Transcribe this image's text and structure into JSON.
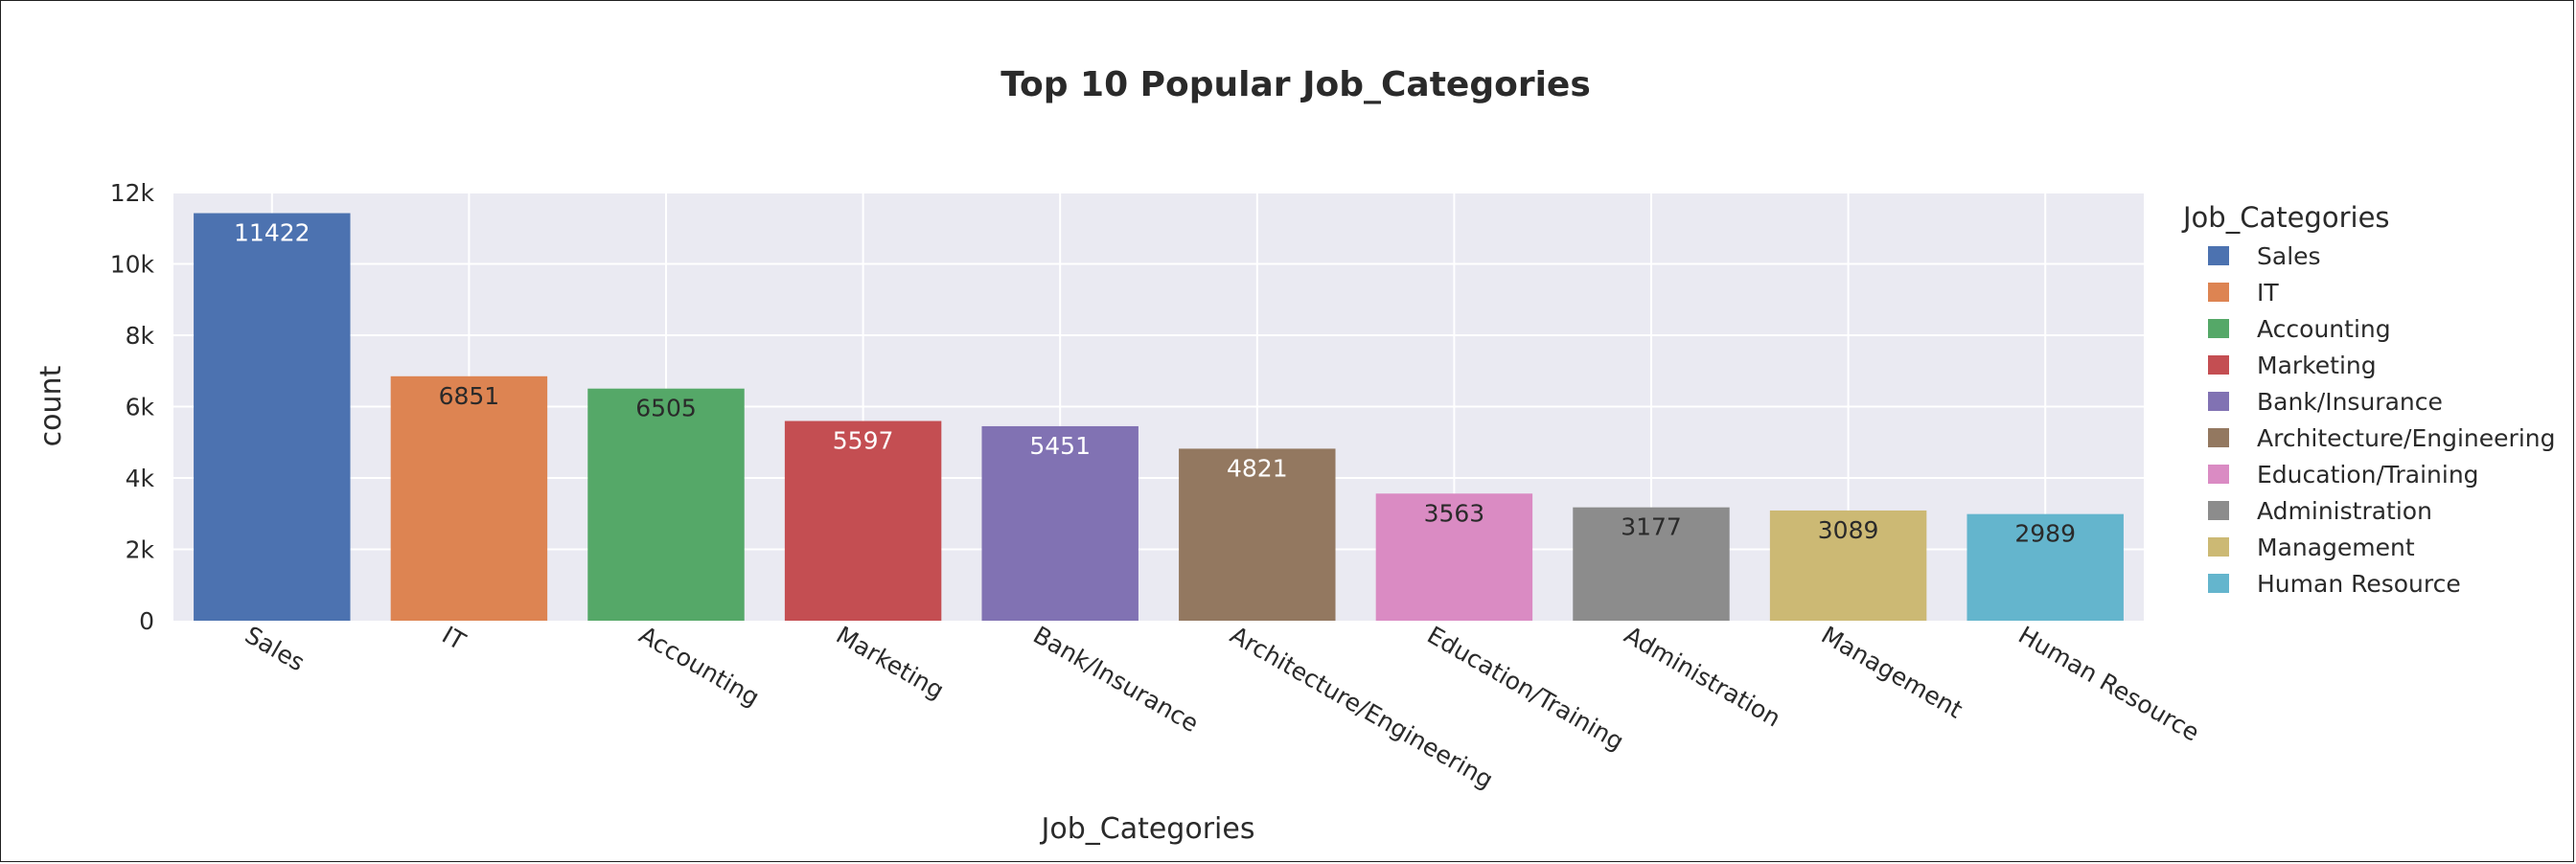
{
  "chart_data": {
    "type": "bar",
    "title": "Top 10 Popular Job_Categories",
    "xlabel": "Job_Categories",
    "ylabel": "count",
    "ylim": [
      0,
      12000
    ],
    "yticks": [
      0,
      2000,
      4000,
      6000,
      8000,
      10000,
      12000
    ],
    "ytick_labels": [
      "0",
      "2k",
      "4k",
      "6k",
      "8k",
      "10k",
      "12k"
    ],
    "grid": true,
    "legend_title": "Job_Categories",
    "legend_position": "right",
    "categories": [
      "Sales",
      "IT",
      "Accounting",
      "Marketing",
      "Bank/Insurance",
      "Architecture/Engineering",
      "Education/Training",
      "Administration",
      "Management",
      "Human Resource"
    ],
    "values": [
      11422,
      6851,
      6505,
      5597,
      5451,
      4821,
      3563,
      3177,
      3089,
      2989
    ],
    "colors": [
      "#4c72b0",
      "#dd8452",
      "#55a868",
      "#c44e52",
      "#8172b3",
      "#937860",
      "#da8bc3",
      "#8c8c8c",
      "#ccb974",
      "#64b5cd"
    ],
    "label_colors": [
      "#ffffff",
      "#2a2a2a",
      "#2a2a2a",
      "#ffffff",
      "#ffffff",
      "#ffffff",
      "#2a2a2a",
      "#2a2a2a",
      "#2a2a2a",
      "#2a2a2a"
    ],
    "plot_background": "#eaeaf2",
    "grid_color": "#ffffff"
  }
}
